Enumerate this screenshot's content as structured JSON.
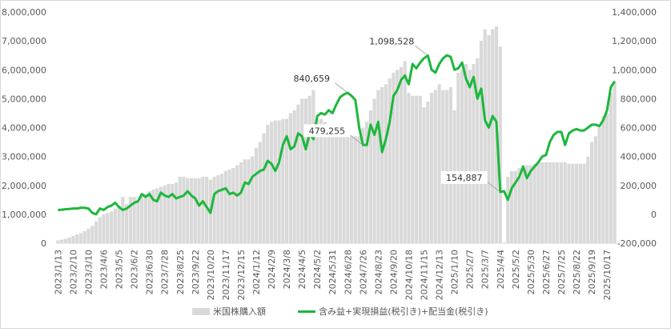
{
  "chart_data": {
    "type": "combo",
    "categories": [
      "2023/1/13",
      null,
      null,
      null,
      "2023/2/10",
      null,
      null,
      null,
      "2023/3/10",
      null,
      null,
      null,
      "2023/4/6",
      null,
      null,
      null,
      "2023/5/5",
      null,
      null,
      null,
      "2023/6/2",
      null,
      null,
      null,
      "2023/6/30",
      null,
      null,
      null,
      "2023/7/28",
      null,
      null,
      null,
      "2023/8/25",
      null,
      null,
      null,
      "2023/9/22",
      null,
      null,
      null,
      "2023/10/20",
      null,
      null,
      null,
      "2023/11/17",
      null,
      null,
      null,
      "2023/12/15",
      null,
      null,
      null,
      "2024/1/12",
      null,
      null,
      null,
      "2024/2/9",
      null,
      null,
      null,
      "2024/3/8",
      null,
      null,
      null,
      "2024/4/5",
      null,
      null,
      null,
      "2024/5/2",
      null,
      null,
      null,
      "2024/5/31",
      null,
      null,
      null,
      "2024/6/28",
      null,
      null,
      null,
      "2024/7/26",
      null,
      null,
      null,
      "2024/8/23",
      null,
      null,
      null,
      "2024/9/20",
      null,
      null,
      null,
      "2024/10/18",
      null,
      null,
      null,
      "2024/11/15",
      null,
      null,
      null,
      "2024/12/13",
      null,
      null,
      null,
      "2025/1/10",
      null,
      null,
      null,
      "2025/2/7",
      null,
      null,
      null,
      "2025/3/7",
      null,
      null,
      null,
      "2025/4/4",
      null,
      null,
      null,
      "2025/5/2",
      null,
      null,
      null,
      "2025/5/30",
      null,
      null,
      null,
      "2025/6/27",
      null,
      null,
      null,
      "2025/7/25",
      null,
      null,
      null,
      "2025/8/22",
      null,
      null,
      null,
      "2025/9/19",
      null,
      null,
      null,
      "2025/10/17",
      null,
      null
    ],
    "series": [
      {
        "name": "米国株購入額",
        "type": "bar",
        "color": "#d9d9d9",
        "axis": "y",
        "values": [
          100000,
          120000,
          150000,
          200000,
          250000,
          300000,
          350000,
          420000,
          500000,
          600000,
          750000,
          900000,
          1000000,
          1050000,
          1100000,
          1200000,
          1300000,
          1600000,
          1350000,
          1600000,
          1600000,
          1500000,
          1650000,
          1700000,
          1800000,
          1850000,
          1900000,
          1950000,
          2000000,
          2050000,
          2050000,
          2100000,
          2300000,
          2300000,
          2250000,
          2250000,
          2250000,
          2250000,
          2300000,
          2300000,
          2200000,
          2300000,
          2350000,
          2400000,
          2500000,
          2550000,
          2600000,
          2700000,
          2800000,
          2900000,
          2900000,
          3000000,
          3300000,
          3500000,
          3800000,
          4100000,
          4200000,
          4250000,
          4250000,
          4300000,
          4300000,
          4500000,
          4600000,
          4800000,
          5000000,
          5000000,
          5100000,
          5300000,
          4300000,
          4300000,
          4200000,
          4000000,
          3900000,
          3800000,
          3800000,
          3800000,
          3800000,
          3700000,
          3700000,
          3700000,
          4000000,
          4200000,
          4600000,
          5000000,
          5300000,
          5400000,
          5500000,
          5700000,
          5900000,
          6000000,
          6100000,
          6300000,
          5200000,
          5100000,
          5100000,
          5100000,
          4700000,
          4900000,
          5200000,
          5300000,
          5500000,
          5300000,
          5300000,
          5400000,
          4600000,
          5900000,
          6000000,
          6200000,
          6000000,
          6200000,
          6400000,
          7000000,
          7400000,
          7200000,
          7400000,
          7500000,
          6800000,
          0,
          2300000,
          2500000,
          2500000,
          2600000,
          2700000,
          2700000,
          2700000,
          2750000,
          2800000,
          2800000,
          2800000,
          2800000,
          2800000,
          2800000,
          2800000,
          2800000,
          2750000,
          2750000,
          2750000,
          2750000,
          2750000,
          3000000,
          3500000,
          3700000,
          4000000,
          4400000,
          4500000,
          5200000,
          5600000
        ]
      },
      {
        "name": "含み益+実現損益(税引き)+配当金(税引き)",
        "type": "line",
        "color": "#1db73c",
        "axis": "y2",
        "values": [
          30000,
          32000,
          35000,
          37000,
          40000,
          40000,
          45000,
          45000,
          40000,
          10000,
          0,
          40000,
          30000,
          50000,
          60000,
          80000,
          50000,
          30000,
          40000,
          60000,
          80000,
          90000,
          140000,
          120000,
          140000,
          100000,
          90000,
          150000,
          130000,
          120000,
          140000,
          110000,
          120000,
          130000,
          160000,
          130000,
          110000,
          60000,
          90000,
          50000,
          10000,
          140000,
          160000,
          170000,
          180000,
          140000,
          150000,
          130000,
          150000,
          220000,
          210000,
          260000,
          280000,
          300000,
          310000,
          370000,
          350000,
          300000,
          360000,
          480000,
          540000,
          450000,
          470000,
          560000,
          540000,
          450000,
          560000,
          520000,
          680000,
          700000,
          690000,
          720000,
          700000,
          760000,
          810000,
          830000,
          840659,
          820000,
          790000,
          600000,
          479255,
          480000,
          620000,
          550000,
          640000,
          430000,
          520000,
          640000,
          820000,
          860000,
          930000,
          960000,
          900000,
          1040000,
          1010000,
          1050000,
          1080000,
          1098528,
          1000000,
          980000,
          1040000,
          1080000,
          1100000,
          1090000,
          1000000,
          1010000,
          1050000,
          940000,
          880000,
          950000,
          800000,
          870000,
          650000,
          600000,
          680000,
          640000,
          154887,
          160000,
          100000,
          180000,
          220000,
          260000,
          330000,
          250000,
          300000,
          330000,
          360000,
          400000,
          410000,
          500000,
          550000,
          570000,
          570000,
          480000,
          560000,
          580000,
          590000,
          580000,
          580000,
          600000,
          620000,
          620000,
          610000,
          650000,
          720000,
          880000,
          920000
        ],
        "value_labels": [
          null,
          null,
          null,
          null,
          null,
          null,
          null,
          null,
          null,
          null,
          null,
          null,
          null,
          null,
          null,
          null,
          null,
          null,
          null,
          null,
          null,
          null,
          null,
          null,
          null,
          null,
          null,
          null,
          null,
          null,
          null,
          null,
          null,
          null,
          null,
          null,
          null,
          null,
          null,
          null,
          null,
          null,
          null,
          null,
          null,
          null,
          null,
          null,
          null,
          null,
          null,
          null,
          null,
          null,
          null,
          null,
          null,
          null,
          null,
          null,
          null,
          null,
          null,
          null,
          null,
          null,
          null,
          null,
          null,
          null,
          null,
          null,
          null,
          null,
          null,
          null,
          "840,659",
          null,
          null,
          null,
          "479,255",
          null,
          null,
          null,
          null,
          null,
          null,
          null,
          null,
          null,
          null,
          null,
          null,
          null,
          null,
          null,
          null,
          "1,098,528",
          null,
          null,
          null,
          null,
          null,
          null,
          null,
          null,
          null,
          null,
          null,
          null,
          null,
          null,
          null,
          null,
          null,
          null,
          "154,887",
          null,
          null,
          null,
          null,
          null,
          null,
          null,
          null,
          null,
          null,
          null,
          null,
          null,
          null,
          null,
          null,
          null,
          null,
          null,
          null,
          null,
          null,
          null,
          null,
          null,
          null,
          null,
          null,
          null,
          null
        ]
      }
    ],
    "ylim": [
      0,
      8000000
    ],
    "yticks": [
      0,
      {
        "value": 1000000,
        "label": "1,000,000"
      },
      {
        "value": 2000000,
        "label": "2,000,000"
      },
      {
        "value": 3000000,
        "label": "3,000,000"
      },
      {
        "value": 4000000,
        "label": "4,000,000"
      },
      {
        "value": 5000000,
        "label": "5,000,000"
      },
      {
        "value": 6000000,
        "label": "6,000,000"
      },
      {
        "value": 7000000,
        "label": "7,000,000"
      },
      {
        "value": 8000000,
        "label": "8,000,000"
      }
    ],
    "y2lim": [
      -200000,
      1400000
    ],
    "y2ticks": [
      {
        "value": -200000,
        "label": "-200,000"
      },
      0,
      {
        "value": 200000,
        "label": "200,000"
      },
      {
        "value": 400000,
        "label": "400,000"
      },
      {
        "value": 600000,
        "label": "600,000"
      },
      {
        "value": 800000,
        "label": "800,000"
      },
      {
        "value": 1000000,
        "label": "1,000,000"
      },
      {
        "value": 1200000,
        "label": "1,200,000"
      },
      {
        "value": 1400000,
        "label": "1,400,000"
      }
    ],
    "legend": "bottom"
  }
}
